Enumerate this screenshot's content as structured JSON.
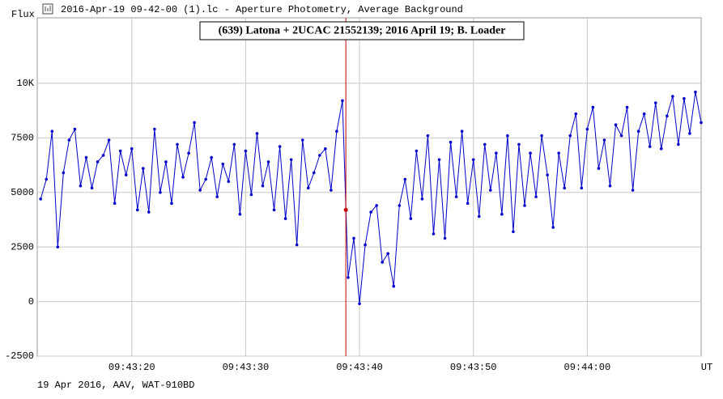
{
  "window_title": "2016-Apr-19 09-42-00 (1).lc - Aperture Photometry, Average Background",
  "footer": "19 Apr 2016, AAV, WAT-910BD",
  "chart_data": {
    "type": "line",
    "title": "(639) Latona + 2UCAC 21552139; 2016 April 19; B. Loader",
    "ylabel": "Flux",
    "xlabel": "UT",
    "xlim": [
      34991.7,
      35050
    ],
    "xticks": [
      {
        "value": 35000,
        "label": "09:43:20"
      },
      {
        "value": 35010,
        "label": "09:43:30"
      },
      {
        "value": 35020,
        "label": "09:43:40"
      },
      {
        "value": 35030,
        "label": "09:43:50"
      },
      {
        "value": 35040,
        "label": "09:44:00"
      }
    ],
    "ylim": [
      -2500,
      13000
    ],
    "yticks": [
      -2500,
      0,
      2500,
      5000,
      7500,
      {
        "value": 10000,
        "label": "10K"
      }
    ],
    "grid": true,
    "cursor": {
      "x": 35018.8,
      "value": 4200,
      "color": "#c00000"
    },
    "x": [
      34992,
      34992.5,
      34993,
      34993.5,
      34994,
      34994.5,
      34995,
      34995.5,
      34996,
      34996.5,
      34997,
      34997.5,
      34998,
      34998.5,
      34999,
      34999.5,
      35000,
      35000.5,
      35001,
      35001.5,
      35002,
      35002.5,
      35003,
      35003.5,
      35004,
      35004.5,
      35005,
      35005.5,
      35006,
      35006.5,
      35007,
      35007.5,
      35008,
      35008.5,
      35009,
      35009.5,
      35010,
      35010.5,
      35011,
      35011.5,
      35012,
      35012.5,
      35013,
      35013.5,
      35014,
      35014.5,
      35015,
      35015.5,
      35016,
      35016.5,
      35017,
      35017.5,
      35018,
      35018.5,
      35019,
      35019.5,
      35020,
      35020.5,
      35021,
      35021.5,
      35022,
      35022.5,
      35023,
      35023.5,
      35024,
      35024.5,
      35025,
      35025.5,
      35026,
      35026.5,
      35027,
      35027.5,
      35028,
      35028.5,
      35029,
      35029.5,
      35030,
      35030.5,
      35031,
      35031.5,
      35032,
      35032.5,
      35033,
      35033.5,
      35034,
      35034.5,
      35035,
      35035.5,
      35036,
      35036.5,
      35037,
      35037.5,
      35038,
      35038.5,
      35039,
      35039.5,
      35040,
      35040.5,
      35041,
      35041.5,
      35042,
      35042.5,
      35043,
      35043.5,
      35044,
      35044.5,
      35045,
      35045.5,
      35046,
      35046.5,
      35047,
      35047.5,
      35048,
      35048.5,
      35049,
      35049.5,
      35050
    ],
    "series": [
      {
        "name": "Flux",
        "color": "#0000cc",
        "values": [
          4700,
          5600,
          7800,
          2500,
          5900,
          7400,
          7900,
          5300,
          6600,
          5200,
          6400,
          6700,
          7400,
          4500,
          6900,
          5800,
          7000,
          4200,
          6100,
          4100,
          7900,
          5000,
          6400,
          4500,
          7200,
          5700,
          6800,
          8200,
          5100,
          5600,
          6600,
          4800,
          6300,
          5500,
          7200,
          4000,
          6900,
          4900,
          7700,
          5300,
          6400,
          4200,
          7100,
          3800,
          6500,
          2600,
          7400,
          5200,
          5900,
          6700,
          7000,
          5100,
          7800,
          9200,
          1100,
          2900,
          -100,
          2600,
          4100,
          4400,
          1800,
          2200,
          700,
          4400,
          5600,
          3800,
          6900,
          4700,
          7600,
          3100,
          6500,
          2900,
          7300,
          4800,
          7800,
          4500,
          6500,
          3900,
          7200,
          5100,
          6800,
          4000,
          7600,
          3200,
          7200,
          4400,
          6800,
          4800,
          7600,
          5800,
          3400,
          6800,
          5200,
          7600,
          8600,
          5200,
          7900,
          8900,
          6100,
          7400,
          5300,
          8100,
          7600,
          8900,
          5100,
          7800,
          8600,
          7100,
          9100,
          7000,
          8500,
          9400,
          7200,
          9300,
          7700,
          9600,
          8200
        ]
      }
    ]
  }
}
